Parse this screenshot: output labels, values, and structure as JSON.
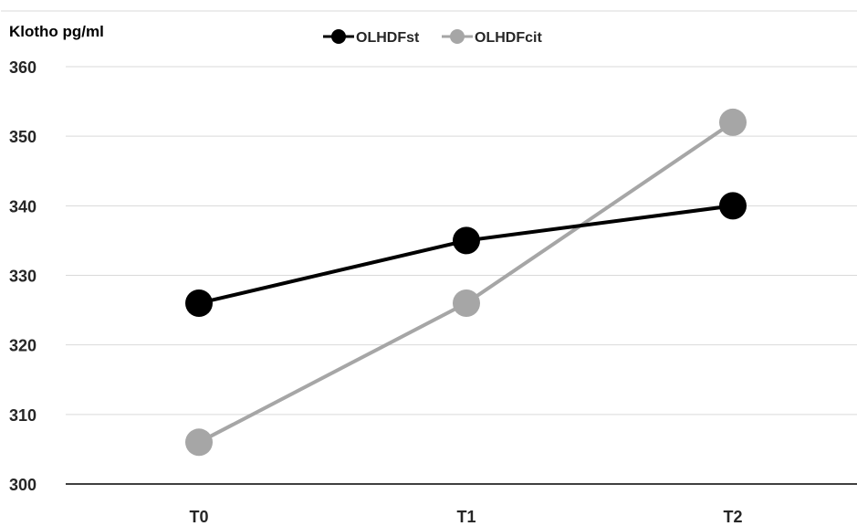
{
  "chart_data": {
    "type": "line",
    "ylabel": "Klotho pg/ml",
    "categories": [
      "T0",
      "T1",
      "T2"
    ],
    "ylim": [
      300,
      360
    ],
    "yticks": [
      300,
      310,
      320,
      330,
      340,
      350,
      360
    ],
    "grid": true,
    "legend_position": "top-center",
    "series": [
      {
        "name": "OLHDFst",
        "color": "#000000",
        "values": [
          326,
          335,
          340
        ]
      },
      {
        "name": "OLHDFcit",
        "color": "#a6a6a6",
        "values": [
          306,
          326,
          352
        ]
      }
    ]
  }
}
